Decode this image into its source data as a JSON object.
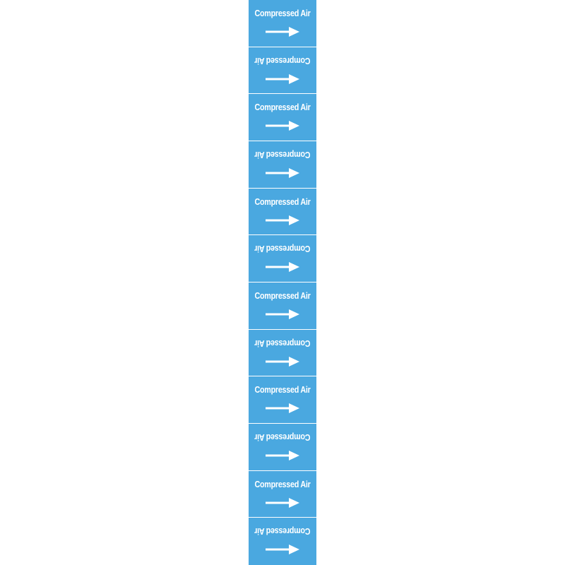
{
  "marker": {
    "text": "Compressed Air",
    "direction_icon": "arrow-right-icon",
    "background_color": "#4aa8e0",
    "text_color": "#ffffff"
  },
  "segments": [
    {
      "label": "Compressed Air",
      "orientation": "upright"
    },
    {
      "label": "Compressed Air",
      "orientation": "inverted"
    },
    {
      "label": "Compressed Air",
      "orientation": "upright"
    },
    {
      "label": "Compressed Air",
      "orientation": "inverted"
    },
    {
      "label": "Compressed Air",
      "orientation": "upright"
    },
    {
      "label": "Compressed Air",
      "orientation": "inverted"
    },
    {
      "label": "Compressed Air",
      "orientation": "upright"
    },
    {
      "label": "Compressed Air",
      "orientation": "inverted"
    },
    {
      "label": "Compressed Air",
      "orientation": "upright"
    },
    {
      "label": "Compressed Air",
      "orientation": "inverted"
    },
    {
      "label": "Compressed Air",
      "orientation": "upright"
    },
    {
      "label": "Compressed Air",
      "orientation": "inverted"
    }
  ]
}
